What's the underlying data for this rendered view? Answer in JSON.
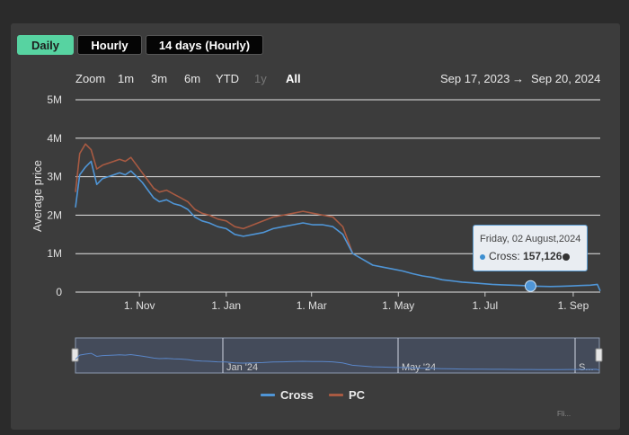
{
  "tabs": [
    {
      "label": "Daily",
      "active": true
    },
    {
      "label": "Hourly",
      "active": false
    },
    {
      "label": "14 days (Hourly)",
      "active": false
    }
  ],
  "range_selector": {
    "zoom_label": "Zoom",
    "buttons": [
      {
        "label": "1m",
        "state": "normal"
      },
      {
        "label": "3m",
        "state": "normal"
      },
      {
        "label": "6m",
        "state": "normal"
      },
      {
        "label": "YTD",
        "state": "normal"
      },
      {
        "label": "1y",
        "state": "disabled"
      },
      {
        "label": "All",
        "state": "selected"
      }
    ],
    "from_date": "Sep 17, 2023",
    "arrow": "→",
    "to_date": "Sep 20, 2024"
  },
  "tooltip": {
    "date": "Friday, 02 August,2024",
    "series_label": "Cross:",
    "value": "157,126",
    "suffix_icon": "coin-icon"
  },
  "navigator": {
    "labels": [
      "Jan '24",
      "May '24",
      "S..."
    ]
  },
  "watermark": "Fli...",
  "colors": {
    "accent": "#57d3a1",
    "cross": "#4f95d6",
    "pc": "#a85a42",
    "background": "#3c3c3c"
  },
  "chart_data": {
    "type": "line",
    "ylabel": "Average price",
    "xlabel": "",
    "ylim": [
      0,
      5000000
    ],
    "yticks": [
      {
        "value": 0,
        "label": "0"
      },
      {
        "value": 1000000,
        "label": "1M"
      },
      {
        "value": 2000000,
        "label": "2M"
      },
      {
        "value": 3000000,
        "label": "3M"
      },
      {
        "value": 4000000,
        "label": "4M"
      },
      {
        "value": 5000000,
        "label": "5M"
      }
    ],
    "xlim": [
      "2023-09-17",
      "2024-09-20"
    ],
    "xticks": [
      {
        "date": "2023-11-01",
        "label": "1. Nov"
      },
      {
        "date": "2024-01-01",
        "label": "1. Jan"
      },
      {
        "date": "2024-03-01",
        "label": "1. Mar"
      },
      {
        "date": "2024-05-01",
        "label": "1. May"
      },
      {
        "date": "2024-07-01",
        "label": "1. Jul"
      },
      {
        "date": "2024-09-01",
        "label": "1. Sep"
      }
    ],
    "legend_position": "bottom",
    "grid": true,
    "highlight": {
      "series": "Cross",
      "date": "2024-08-02",
      "y": 157126
    },
    "series": [
      {
        "name": "Cross",
        "color": "#4f95d6",
        "x": [
          "2023-09-17",
          "2023-09-20",
          "2023-09-24",
          "2023-09-28",
          "2023-10-02",
          "2023-10-06",
          "2023-10-10",
          "2023-10-14",
          "2023-10-18",
          "2023-10-22",
          "2023-10-26",
          "2023-10-30",
          "2023-11-03",
          "2023-11-07",
          "2023-11-11",
          "2023-11-15",
          "2023-11-20",
          "2023-11-25",
          "2023-11-30",
          "2023-12-05",
          "2023-12-10",
          "2023-12-15",
          "2023-12-20",
          "2023-12-26",
          "2024-01-01",
          "2024-01-07",
          "2024-01-13",
          "2024-01-20",
          "2024-01-27",
          "2024-02-03",
          "2024-02-10",
          "2024-02-17",
          "2024-02-24",
          "2024-03-02",
          "2024-03-09",
          "2024-03-16",
          "2024-03-23",
          "2024-03-30",
          "2024-04-06",
          "2024-04-13",
          "2024-04-20",
          "2024-04-27",
          "2024-05-04",
          "2024-05-11",
          "2024-05-18",
          "2024-05-25",
          "2024-06-01",
          "2024-06-08",
          "2024-06-15",
          "2024-06-22",
          "2024-06-29",
          "2024-07-06",
          "2024-07-13",
          "2024-07-20",
          "2024-07-27",
          "2024-08-02",
          "2024-08-09",
          "2024-08-16",
          "2024-08-23",
          "2024-08-30",
          "2024-09-06",
          "2024-09-13",
          "2024-09-18",
          "2024-09-20"
        ],
        "y": [
          2200000,
          3050000,
          3250000,
          3400000,
          2800000,
          2950000,
          3000000,
          3050000,
          3100000,
          3050000,
          3150000,
          3000000,
          2850000,
          2650000,
          2450000,
          2350000,
          2400000,
          2300000,
          2250000,
          2150000,
          1950000,
          1850000,
          1800000,
          1700000,
          1650000,
          1500000,
          1450000,
          1500000,
          1550000,
          1650000,
          1700000,
          1750000,
          1800000,
          1750000,
          1750000,
          1700000,
          1500000,
          1000000,
          850000,
          700000,
          650000,
          600000,
          550000,
          480000,
          420000,
          380000,
          320000,
          290000,
          260000,
          240000,
          220000,
          200000,
          190000,
          180000,
          170000,
          157126,
          150000,
          145000,
          150000,
          160000,
          170000,
          180000,
          200000,
          30000
        ]
      },
      {
        "name": "PC",
        "color": "#a85a42",
        "x": [
          "2023-09-17",
          "2023-09-20",
          "2023-09-24",
          "2023-09-28",
          "2023-10-02",
          "2023-10-06",
          "2023-10-10",
          "2023-10-14",
          "2023-10-18",
          "2023-10-22",
          "2023-10-26",
          "2023-10-30",
          "2023-11-03",
          "2023-11-07",
          "2023-11-11",
          "2023-11-15",
          "2023-11-20",
          "2023-11-25",
          "2023-11-30",
          "2023-12-05",
          "2023-12-10",
          "2023-12-15",
          "2023-12-20",
          "2023-12-26",
          "2024-01-01",
          "2024-01-07",
          "2024-01-13",
          "2024-01-20",
          "2024-01-27",
          "2024-02-03",
          "2024-02-10",
          "2024-02-17",
          "2024-02-24",
          "2024-03-02",
          "2024-03-09",
          "2024-03-16",
          "2024-03-23",
          "2024-03-30"
        ],
        "y": [
          2600000,
          3600000,
          3850000,
          3700000,
          3200000,
          3300000,
          3350000,
          3400000,
          3450000,
          3400000,
          3500000,
          3300000,
          3100000,
          2900000,
          2700000,
          2600000,
          2650000,
          2550000,
          2450000,
          2350000,
          2150000,
          2050000,
          2000000,
          1900000,
          1850000,
          1700000,
          1650000,
          1750000,
          1850000,
          1950000,
          2000000,
          2050000,
          2100000,
          2050000,
          2000000,
          1950000,
          1700000,
          1000000
        ]
      }
    ]
  }
}
